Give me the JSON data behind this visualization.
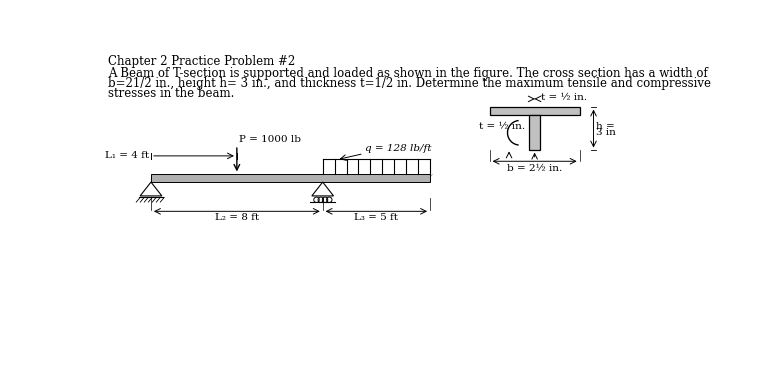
{
  "title": "Chapter 2 Practice Problem #2",
  "body_line1": "A Beam of T-section is supported and loaded as shown in the figure. The cross section has a width of",
  "body_line2": "b=21/2 in., height h= 3 in., and thickness t=1/2 in. Determine the maximum tensile and compressive",
  "body_line3": "stresses in the beam.",
  "label_P": "P = 1000 lb",
  "label_q": "q = 128 lb/ft",
  "label_L1": "L₁ = 4 ft",
  "label_L2": "L₂ = 8 ft",
  "label_L3": "L₃ = 5 ft",
  "label_t_top": "t = ½ in.",
  "label_t_web": "t = ½ in.",
  "label_h": "h =",
  "label_h2": "3 in",
  "label_b": "b = 2½ in.",
  "bg_color": "#ffffff",
  "text_color": "#000000"
}
